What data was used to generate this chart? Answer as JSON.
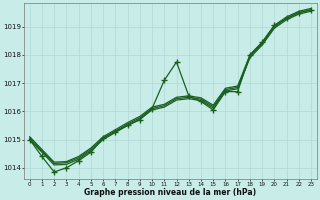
{
  "xlabel": "Graphe pression niveau de la mer (hPa)",
  "background_color": "#c8ece8",
  "grid_color": "#b0d8d4",
  "line_color": "#1a6020",
  "ylim": [
    1013.6,
    1019.85
  ],
  "xlim": [
    -0.5,
    23.5
  ],
  "yticks": [
    1014,
    1015,
    1016,
    1017,
    1018,
    1019
  ],
  "xticks": [
    0,
    1,
    2,
    3,
    4,
    5,
    6,
    7,
    8,
    9,
    10,
    11,
    12,
    13,
    14,
    15,
    16,
    17,
    18,
    19,
    20,
    21,
    22,
    23
  ],
  "smooth1": [
    1015.0,
    1014.55,
    1014.1,
    1014.12,
    1014.3,
    1014.6,
    1015.0,
    1015.25,
    1015.5,
    1015.72,
    1016.05,
    1016.15,
    1016.4,
    1016.45,
    1016.38,
    1016.12,
    1016.72,
    1016.8,
    1017.9,
    1018.35,
    1018.95,
    1019.25,
    1019.45,
    1019.55
  ],
  "smooth2": [
    1015.05,
    1014.6,
    1014.15,
    1014.18,
    1014.35,
    1014.65,
    1015.05,
    1015.3,
    1015.55,
    1015.77,
    1016.1,
    1016.2,
    1016.45,
    1016.5,
    1016.43,
    1016.17,
    1016.77,
    1016.85,
    1017.95,
    1018.4,
    1019.0,
    1019.3,
    1019.5,
    1019.6
  ],
  "smooth3": [
    1015.1,
    1014.65,
    1014.2,
    1014.22,
    1014.4,
    1014.7,
    1015.1,
    1015.35,
    1015.6,
    1015.82,
    1016.15,
    1016.25,
    1016.5,
    1016.55,
    1016.48,
    1016.22,
    1016.82,
    1016.9,
    1018.0,
    1018.45,
    1019.05,
    1019.35,
    1019.55,
    1019.65
  ],
  "main_series": [
    1015.0,
    1014.4,
    1013.85,
    1014.0,
    1014.25,
    1014.55,
    1015.05,
    1015.28,
    1015.5,
    1015.7,
    1016.1,
    1017.1,
    1017.75,
    1016.55,
    1016.35,
    1016.05,
    1016.7,
    1016.7,
    1018.0,
    1018.45,
    1019.05,
    1019.3,
    1019.5,
    1019.6
  ]
}
